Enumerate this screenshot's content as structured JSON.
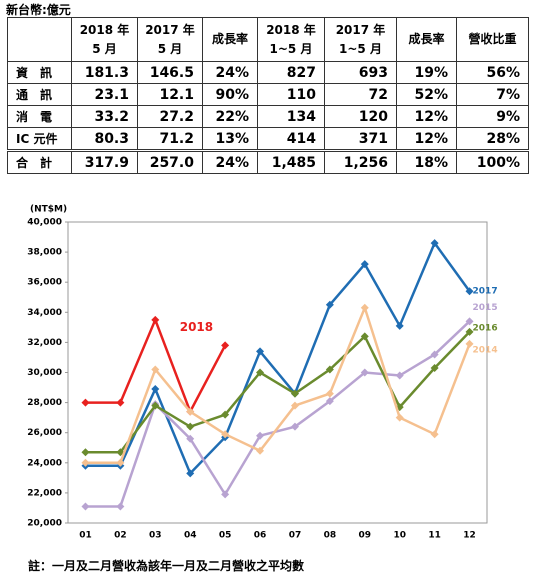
{
  "table": {
    "unit": "新台幣:億元",
    "header": [
      "",
      "2018 年\n5 月",
      "2017 年\n5 月",
      "成長率",
      "2018 年\n1~5 月",
      "2017 年\n1~5 月",
      "成長率",
      "營收比重"
    ],
    "rows": [
      [
        "資　訊",
        "181.3",
        "146.5",
        "24%",
        "827",
        "693",
        "19%",
        "56%"
      ],
      [
        "通　訊",
        "23.1",
        "12.1",
        "90%",
        "110",
        "72",
        "52%",
        "7%"
      ],
      [
        "消　電",
        "33.2",
        "27.2",
        "22%",
        "134",
        "120",
        "12%",
        "9%"
      ],
      [
        "IC 元件",
        "80.3",
        "71.2",
        "13%",
        "414",
        "371",
        "12%",
        "28%"
      ],
      [
        "合　計",
        "317.9",
        "257.0",
        "24%",
        "1,485",
        "1,256",
        "18%",
        "100%"
      ]
    ]
  },
  "chart_data": {
    "type": "line",
    "y_label": "(NT$M)",
    "categories": [
      "01",
      "02",
      "03",
      "04",
      "05",
      "06",
      "07",
      "08",
      "09",
      "10",
      "11",
      "12"
    ],
    "ylim": [
      20000,
      40000
    ],
    "yticks": [
      {
        "value": 20000,
        "label": "20,000"
      },
      {
        "value": 22000,
        "label": "22,000"
      },
      {
        "value": 24000,
        "label": "24,000"
      },
      {
        "value": 26000,
        "label": "26,000"
      },
      {
        "value": 28000,
        "label": "28,000"
      },
      {
        "value": 30000,
        "label": "30,000"
      },
      {
        "value": 32000,
        "label": "32,000"
      },
      {
        "value": 34000,
        "label": "34,000"
      },
      {
        "value": 36000,
        "label": "36,000"
      },
      {
        "value": 38000,
        "label": "38,000"
      },
      {
        "value": 40000,
        "label": "40,000"
      }
    ],
    "grid": false,
    "series": [
      {
        "name": "2018",
        "color": "#e8211f",
        "values": [
          28000,
          28000,
          33500,
          27400,
          31800,
          null,
          null,
          null,
          null,
          null,
          null,
          null
        ]
      },
      {
        "name": "2017",
        "color": "#1f6db3",
        "values": [
          23800,
          23800,
          28900,
          23300,
          25700,
          31400,
          28600,
          34500,
          37200,
          33100,
          38600,
          35400
        ]
      },
      {
        "name": "2015",
        "color": "#b8a3d1",
        "values": [
          21100,
          21100,
          27900,
          25600,
          21900,
          25800,
          26400,
          28100,
          30000,
          29800,
          31200,
          33400
        ]
      },
      {
        "name": "2016",
        "color": "#6a8b2e",
        "values": [
          24700,
          24700,
          27800,
          26400,
          27200,
          30000,
          28600,
          30200,
          32400,
          27700,
          30300,
          32700
        ]
      },
      {
        "name": "2014",
        "color": "#f5c08f",
        "values": [
          24000,
          24000,
          30200,
          27400,
          25900,
          24800,
          27800,
          28600,
          34300,
          27000,
          25900,
          31900
        ]
      }
    ],
    "note": "註：一月及二月營收為該年一月及二月營收之平均數"
  }
}
